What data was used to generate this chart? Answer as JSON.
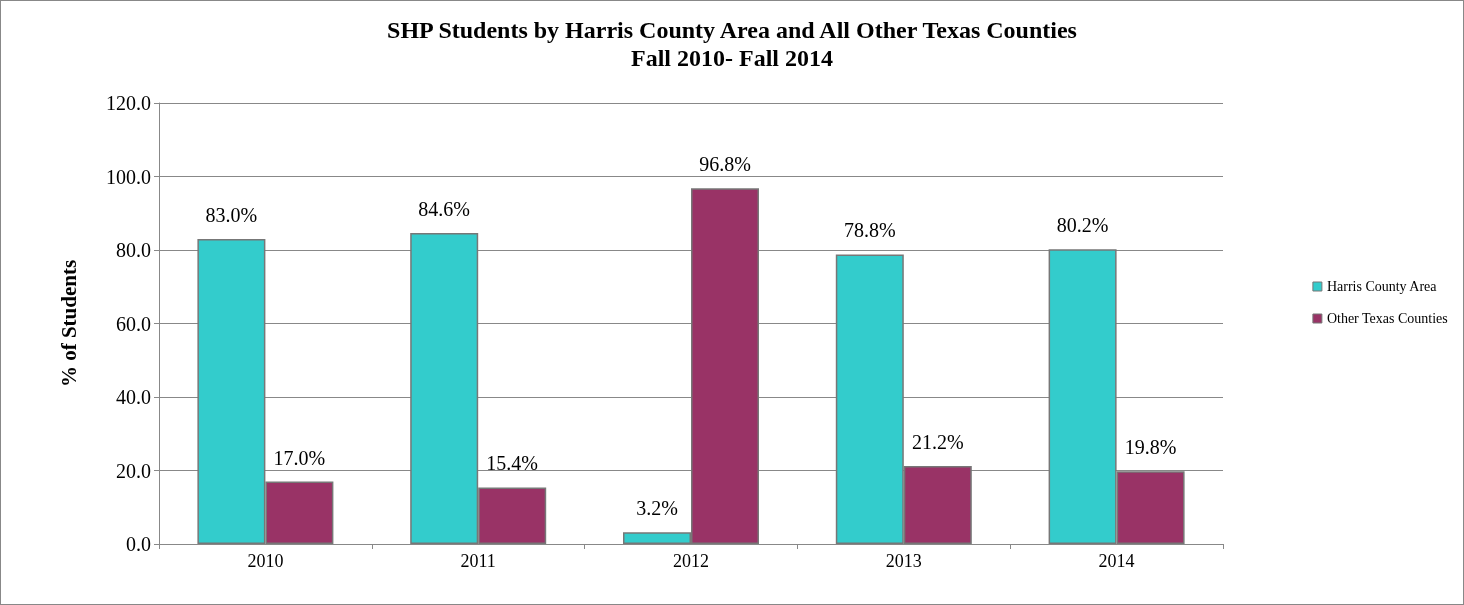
{
  "chart_data": {
    "type": "bar",
    "title": "SHP Students by Harris County Area and All Other Texas Counties",
    "subtitle": "Fall 2010- Fall 2014",
    "ylabel": "% of Students",
    "categories": [
      "2010",
      "2011",
      "2012",
      "2013",
      "2014"
    ],
    "series": [
      {
        "name": "Harris County Area",
        "color": "#33cccc",
        "values": [
          83.0,
          84.6,
          3.2,
          78.8,
          80.2
        ],
        "value_labels": [
          "83.0%",
          "84.6%",
          "3.2%",
          "78.8%",
          "80.2%"
        ]
      },
      {
        "name": "Other Texas Counties",
        "color": "#993366",
        "values": [
          17.0,
          15.4,
          96.8,
          21.2,
          19.8
        ],
        "value_labels": [
          "17.0%",
          "15.4%",
          "96.8%",
          "21.2%",
          "19.8%"
        ]
      }
    ],
    "ylim": [
      0,
      120
    ],
    "yticks": [
      {
        "value": 0,
        "label": "0.0"
      },
      {
        "value": 20,
        "label": "20.0"
      },
      {
        "value": 40,
        "label": "40.0"
      },
      {
        "value": 60,
        "label": "60.0"
      },
      {
        "value": 80,
        "label": "80.0"
      },
      {
        "value": 100,
        "label": "100.0"
      },
      {
        "value": 120,
        "label": "120.0"
      }
    ],
    "grid": "y",
    "legend": "right"
  }
}
